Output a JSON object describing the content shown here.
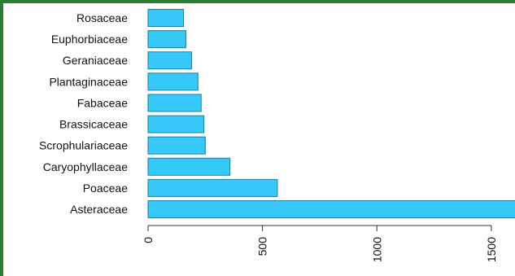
{
  "chart_data": {
    "type": "bar",
    "orientation": "horizontal",
    "categories": [
      "Rosaceae",
      "Euphorbiaceae",
      "Geraniaceae",
      "Plantaginaceae",
      "Fabaceae",
      "Brassicaceae",
      "Scrophulariaceae",
      "Caryophyllaceae",
      "Poaceae",
      "Asteraceae"
    ],
    "values": [
      155,
      165,
      190,
      218,
      232,
      244,
      250,
      358,
      565,
      1615
    ],
    "xticks": [
      0,
      500,
      1000,
      1500
    ],
    "xlim": [
      0,
      1600
    ],
    "title": "",
    "xlabel": "",
    "ylabel": "",
    "grid": false,
    "legend": "none",
    "bar_color": "#36c8f8",
    "bar_edge_color": "#1f7fa6",
    "frame_color": "#2e7d32"
  }
}
